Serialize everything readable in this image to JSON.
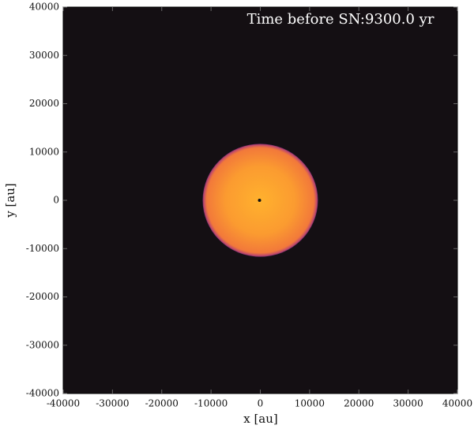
{
  "chart_data": {
    "type": "image",
    "annotation": "Time before SN:9300.0 yr",
    "xlabel": "x [au]",
    "ylabel": "y [au]",
    "xlim": [
      -40000,
      40000
    ],
    "ylim": [
      -40000,
      40000
    ],
    "xticks": [
      -40000,
      -30000,
      -20000,
      -10000,
      0,
      10000,
      20000,
      30000,
      40000
    ],
    "yticks": [
      -40000,
      -30000,
      -20000,
      -10000,
      0,
      10000,
      20000,
      30000,
      40000
    ],
    "star": {
      "x": 0,
      "y": 0,
      "radius": 11700
    },
    "background": "#140f13"
  }
}
